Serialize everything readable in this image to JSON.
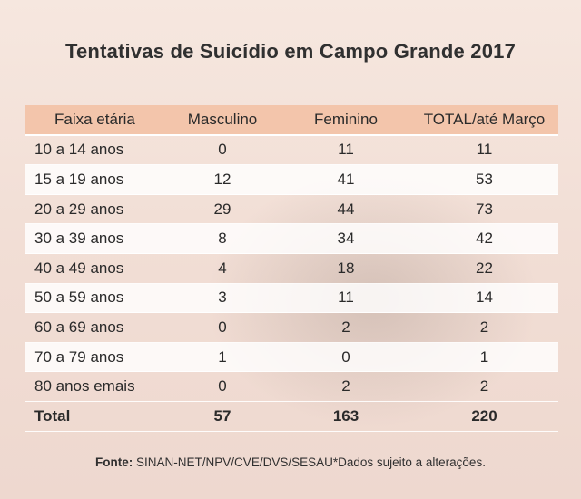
{
  "chart_data": {
    "type": "table",
    "title": "Tentativas de Suicídio em Campo Grande 2017",
    "columns": [
      "Faixa etária",
      "Masculino",
      "Feminino",
      "TOTAL/até Março"
    ],
    "rows": [
      [
        "10 a 14 anos",
        "0",
        "11",
        "11"
      ],
      [
        "15 a 19 anos",
        "12",
        "41",
        "53"
      ],
      [
        "20 a 29 anos",
        "29",
        "44",
        "73"
      ],
      [
        "30 a 39 anos",
        "8",
        "34",
        "42"
      ],
      [
        "40 a 49 anos",
        "4",
        "18",
        "22"
      ],
      [
        "50 a 59 anos",
        "3",
        "11",
        "14"
      ],
      [
        "60 a 69 anos",
        "0",
        "2",
        "2"
      ],
      [
        "70 a 79 anos",
        "1",
        "0",
        "1"
      ],
      [
        "80 anos emais",
        "0",
        "2",
        "2"
      ]
    ],
    "total": [
      "Total",
      "57",
      "163",
      "220"
    ],
    "footnote_label": "Fonte:",
    "footnote_text": " SINAN-NET/NPV/CVE/DVS/SESAU*Dados sujeito a alterações."
  }
}
